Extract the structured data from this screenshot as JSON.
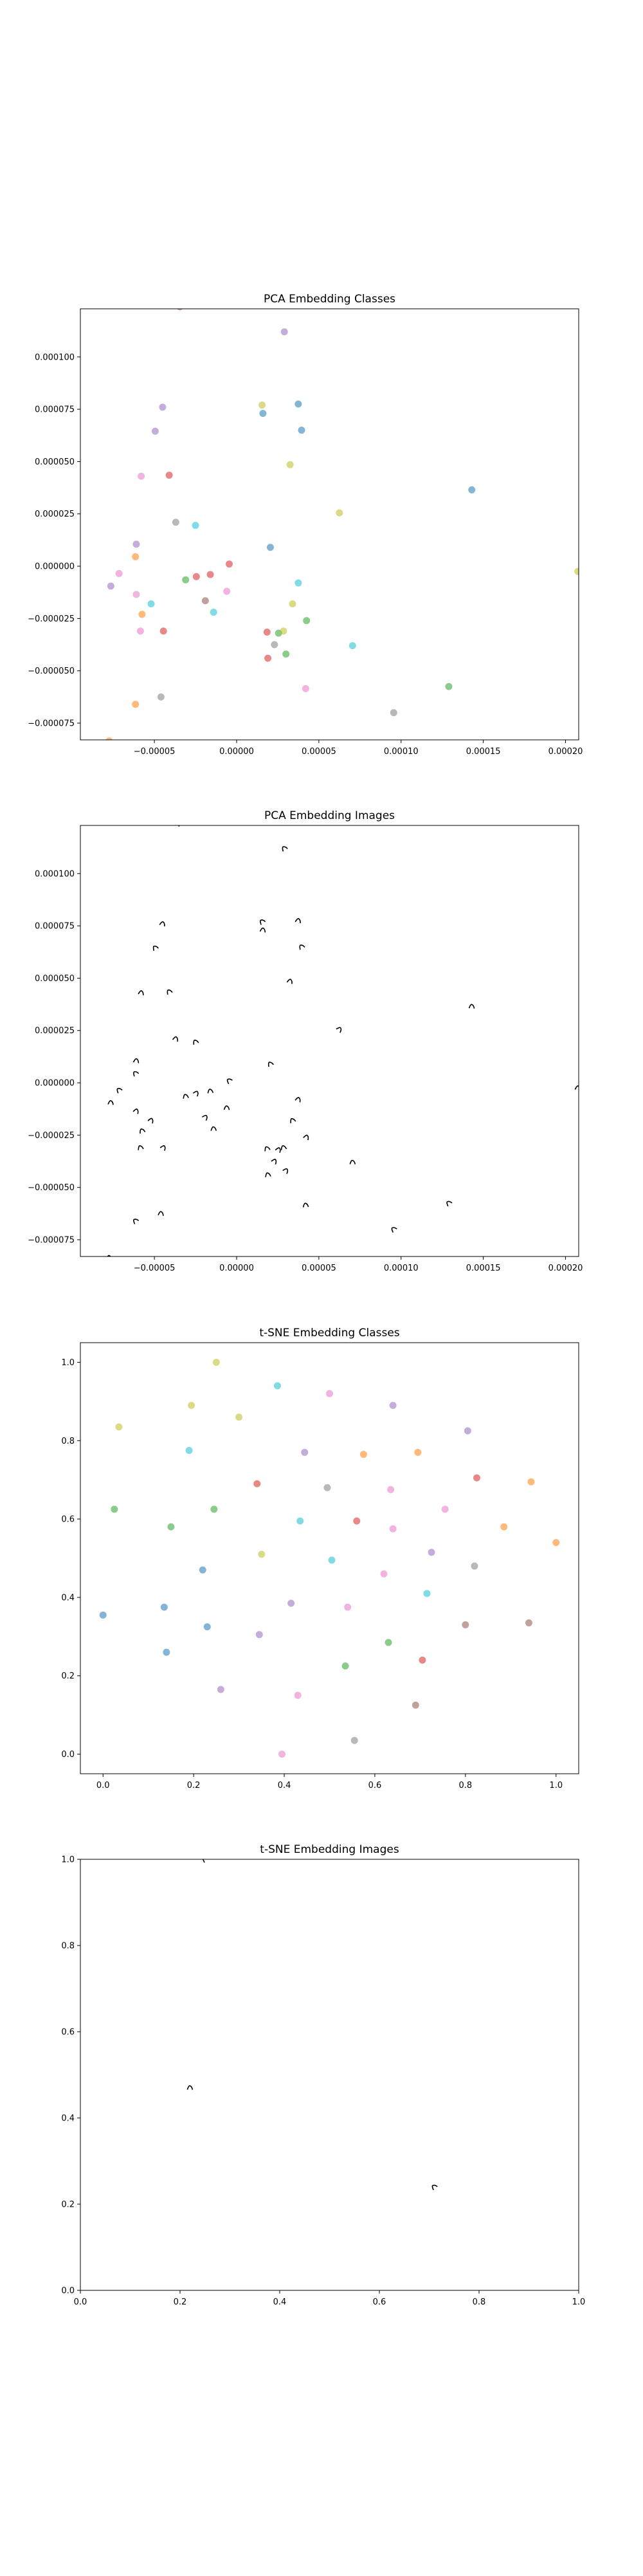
{
  "chart_data": [
    {
      "type": "scatter",
      "title": "PCA Embedding Classes",
      "xlabel": "",
      "ylabel": "",
      "xlim": [
        -9.5e-05,
        0.000208
      ],
      "ylim": [
        -8.3e-05,
        0.000123
      ],
      "x_ticks": [
        -5e-05,
        0.0,
        5e-05,
        0.0001,
        0.00015,
        0.0002
      ],
      "x_tick_labels": [
        "−0.00005",
        "0.00000",
        "0.00005",
        "0.00010",
        "0.00015",
        "0.00020"
      ],
      "y_ticks": [
        -7.5e-05,
        -5e-05,
        -2.5e-05,
        0.0,
        2.5e-05,
        5e-05,
        7.5e-05,
        0.0001
      ],
      "y_tick_labels": [
        "−0.000075",
        "−0.000050",
        "−0.000025",
        "0.000000",
        "0.000025",
        "0.000050",
        "0.000075",
        "0.000100"
      ],
      "grid": false,
      "points": [
        {
          "x": -9.85e-05,
          "y": -3.1e-05,
          "color": "#ff7f0e"
        },
        {
          "x": -7.75e-05,
          "y": -8.35e-05,
          "color": "#ff7f0e"
        },
        {
          "x": -3.45e-05,
          "y": 0.000124,
          "color": "#8c564b"
        },
        {
          "x": -7.65e-05,
          "y": -9.5e-06,
          "color": "#9467bd"
        },
        {
          "x": -7.15e-05,
          "y": -3.5e-06,
          "color": "#e377c2"
        },
        {
          "x": -6.1e-05,
          "y": 1.05e-05,
          "color": "#9467bd"
        },
        {
          "x": -6.15e-05,
          "y": 4.5e-06,
          "color": "#ff7f0e"
        },
        {
          "x": -5.8e-05,
          "y": 4.3e-05,
          "color": "#e377c2"
        },
        {
          "x": -4.95e-05,
          "y": 6.45e-05,
          "color": "#9467bd"
        },
        {
          "x": -4.5e-05,
          "y": 7.6e-05,
          "color": "#9467bd"
        },
        {
          "x": -4.1e-05,
          "y": 4.35e-05,
          "color": "#d62728"
        },
        {
          "x": -3.7e-05,
          "y": 2.1e-05,
          "color": "#7f7f7f"
        },
        {
          "x": -2.5e-05,
          "y": 1.95e-05,
          "color": "#17becf"
        },
        {
          "x": -6.1e-05,
          "y": -1.35e-05,
          "color": "#e377c2"
        },
        {
          "x": -5.75e-05,
          "y": -2.3e-05,
          "color": "#ff7f0e"
        },
        {
          "x": -5.2e-05,
          "y": -1.8e-05,
          "color": "#17becf"
        },
        {
          "x": -5.85e-05,
          "y": -3.1e-05,
          "color": "#e377c2"
        },
        {
          "x": -4.45e-05,
          "y": -3.1e-05,
          "color": "#d62728"
        },
        {
          "x": -3.1e-05,
          "y": -6.5e-06,
          "color": "#2ca02c"
        },
        {
          "x": -2.45e-05,
          "y": -5e-06,
          "color": "#d62728"
        },
        {
          "x": -1.6e-05,
          "y": -4e-06,
          "color": "#d62728"
        },
        {
          "x": -1.9e-05,
          "y": -1.65e-05,
          "color": "#8c564b"
        },
        {
          "x": -1.4e-05,
          "y": -2.2e-05,
          "color": "#17becf"
        },
        {
          "x": -4.5e-06,
          "y": 1e-06,
          "color": "#d62728"
        },
        {
          "x": -6e-06,
          "y": -1.2e-05,
          "color": "#e377c2"
        },
        {
          "x": -6.15e-05,
          "y": -6.6e-05,
          "color": "#ff7f0e"
        },
        {
          "x": -4.6e-05,
          "y": -6.25e-05,
          "color": "#7f7f7f"
        },
        {
          "x": 1.55e-05,
          "y": 7.7e-05,
          "color": "#bcbd22"
        },
        {
          "x": 1.6e-05,
          "y": 7.3e-05,
          "color": "#1f77b4"
        },
        {
          "x": 2.9e-05,
          "y": 0.000112,
          "color": "#9467bd"
        },
        {
          "x": 3.75e-05,
          "y": 7.75e-05,
          "color": "#1f77b4"
        },
        {
          "x": 3.95e-05,
          "y": 6.5e-05,
          "color": "#1f77b4"
        },
        {
          "x": 3.25e-05,
          "y": 4.85e-05,
          "color": "#bcbd22"
        },
        {
          "x": 2.05e-05,
          "y": 9e-06,
          "color": "#1f77b4"
        },
        {
          "x": 3.75e-05,
          "y": -8e-06,
          "color": "#17becf"
        },
        {
          "x": 3.4e-05,
          "y": -1.8e-05,
          "color": "#bcbd22"
        },
        {
          "x": 4.25e-05,
          "y": -2.6e-05,
          "color": "#2ca02c"
        },
        {
          "x": 1.85e-05,
          "y": -3.15e-05,
          "color": "#d62728"
        },
        {
          "x": 2.55e-05,
          "y": -3.2e-05,
          "color": "#2ca02c"
        },
        {
          "x": 2.85e-05,
          "y": -3.1e-05,
          "color": "#bcbd22"
        },
        {
          "x": 2.3e-05,
          "y": -3.75e-05,
          "color": "#7f7f7f"
        },
        {
          "x": 1.9e-05,
          "y": -4.4e-05,
          "color": "#d62728"
        },
        {
          "x": 3e-05,
          "y": -4.2e-05,
          "color": "#2ca02c"
        },
        {
          "x": 4.2e-05,
          "y": -5.85e-05,
          "color": "#e377c2"
        },
        {
          "x": 6.25e-05,
          "y": 2.55e-05,
          "color": "#bcbd22"
        },
        {
          "x": 7.05e-05,
          "y": -3.8e-05,
          "color": "#17becf"
        },
        {
          "x": 9.55e-05,
          "y": -7e-05,
          "color": "#7f7f7f"
        },
        {
          "x": 0.000143,
          "y": 3.65e-05,
          "color": "#1f77b4"
        },
        {
          "x": 0.000129,
          "y": -5.75e-05,
          "color": "#2ca02c"
        },
        {
          "x": 0.0002075,
          "y": -2.5e-06,
          "color": "#bcbd22"
        }
      ]
    },
    {
      "type": "scatter",
      "title": "PCA Embedding Images",
      "xlabel": "",
      "ylabel": "",
      "xlim": [
        -9.5e-05,
        0.000208
      ],
      "ylim": [
        -8.3e-05,
        0.000123
      ],
      "x_ticks": [
        -5e-05,
        0.0,
        5e-05,
        0.0001,
        0.00015,
        0.0002
      ],
      "x_tick_labels": [
        "−0.00005",
        "0.00000",
        "0.00005",
        "0.00010",
        "0.00015",
        "0.00020"
      ],
      "y_ticks": [
        -7.5e-05,
        -5e-05,
        -2.5e-05,
        0.0,
        2.5e-05,
        5e-05,
        7.5e-05,
        0.0001
      ],
      "y_tick_labels": [
        "−0.000075",
        "−0.000050",
        "−0.000025",
        "0.000000",
        "0.000025",
        "0.000050",
        "0.000075",
        "0.000100"
      ],
      "grid": false,
      "marker": "small black image thumbnail",
      "points": [
        {
          "x": -9.85e-05,
          "y": -3.1e-05
        },
        {
          "x": -7.75e-05,
          "y": -8.35e-05
        },
        {
          "x": -3.45e-05,
          "y": 0.000124
        },
        {
          "x": -7.65e-05,
          "y": -9.5e-06
        },
        {
          "x": -7.15e-05,
          "y": -3.5e-06
        },
        {
          "x": -6.1e-05,
          "y": 1.05e-05
        },
        {
          "x": -6.15e-05,
          "y": 4.5e-06
        },
        {
          "x": -5.8e-05,
          "y": 4.3e-05
        },
        {
          "x": -4.95e-05,
          "y": 6.45e-05
        },
        {
          "x": -4.5e-05,
          "y": 7.6e-05
        },
        {
          "x": -4.1e-05,
          "y": 4.35e-05
        },
        {
          "x": -3.7e-05,
          "y": 2.1e-05
        },
        {
          "x": -2.5e-05,
          "y": 1.95e-05
        },
        {
          "x": -6.1e-05,
          "y": -1.35e-05
        },
        {
          "x": -5.75e-05,
          "y": -2.3e-05
        },
        {
          "x": -5.2e-05,
          "y": -1.8e-05
        },
        {
          "x": -5.85e-05,
          "y": -3.1e-05
        },
        {
          "x": -4.45e-05,
          "y": -3.1e-05
        },
        {
          "x": -3.1e-05,
          "y": -6.5e-06
        },
        {
          "x": -2.45e-05,
          "y": -5e-06
        },
        {
          "x": -1.6e-05,
          "y": -4e-06
        },
        {
          "x": -1.9e-05,
          "y": -1.65e-05
        },
        {
          "x": -1.4e-05,
          "y": -2.2e-05
        },
        {
          "x": -4.5e-06,
          "y": 1e-06
        },
        {
          "x": -6e-06,
          "y": -1.2e-05
        },
        {
          "x": -6.15e-05,
          "y": -6.6e-05
        },
        {
          "x": -4.6e-05,
          "y": -6.25e-05
        },
        {
          "x": 1.55e-05,
          "y": 7.7e-05
        },
        {
          "x": 1.6e-05,
          "y": 7.3e-05
        },
        {
          "x": 2.9e-05,
          "y": 0.000112
        },
        {
          "x": 3.75e-05,
          "y": 7.75e-05
        },
        {
          "x": 3.95e-05,
          "y": 6.5e-05
        },
        {
          "x": 3.25e-05,
          "y": 4.85e-05
        },
        {
          "x": 2.05e-05,
          "y": 9e-06
        },
        {
          "x": 3.75e-05,
          "y": -8e-06
        },
        {
          "x": 3.4e-05,
          "y": -1.8e-05
        },
        {
          "x": 4.25e-05,
          "y": -2.6e-05
        },
        {
          "x": 1.85e-05,
          "y": -3.15e-05
        },
        {
          "x": 2.55e-05,
          "y": -3.2e-05
        },
        {
          "x": 2.85e-05,
          "y": -3.1e-05
        },
        {
          "x": 2.3e-05,
          "y": -3.75e-05
        },
        {
          "x": 1.9e-05,
          "y": -4.4e-05
        },
        {
          "x": 3e-05,
          "y": -4.2e-05
        },
        {
          "x": 4.2e-05,
          "y": -5.85e-05
        },
        {
          "x": 6.25e-05,
          "y": 2.55e-05
        },
        {
          "x": 7.05e-05,
          "y": -3.8e-05
        },
        {
          "x": 9.55e-05,
          "y": -7e-05
        },
        {
          "x": 0.000143,
          "y": 3.65e-05
        },
        {
          "x": 0.000129,
          "y": -5.75e-05
        },
        {
          "x": 0.0002075,
          "y": -2.5e-06
        }
      ]
    },
    {
      "type": "scatter",
      "title": "t-SNE Embedding Classes",
      "xlabel": "",
      "ylabel": "",
      "xlim": [
        -0.05,
        1.05
      ],
      "ylim": [
        -0.05,
        1.05
      ],
      "x_ticks": [
        0.0,
        0.2,
        0.4,
        0.6,
        0.8,
        1.0
      ],
      "x_tick_labels": [
        "0.0",
        "0.2",
        "0.4",
        "0.6",
        "0.8",
        "1.0"
      ],
      "y_ticks": [
        0.0,
        0.2,
        0.4,
        0.6,
        0.8,
        1.0
      ],
      "y_tick_labels": [
        "0.0",
        "0.2",
        "0.4",
        "0.6",
        "0.8",
        "1.0"
      ],
      "grid": false,
      "points": [
        {
          "x": 0.0,
          "y": 0.355,
          "color": "#1f77b4"
        },
        {
          "x": 0.025,
          "y": 0.625,
          "color": "#2ca02c"
        },
        {
          "x": 0.035,
          "y": 0.835,
          "color": "#bcbd22"
        },
        {
          "x": 0.135,
          "y": 0.375,
          "color": "#1f77b4"
        },
        {
          "x": 0.14,
          "y": 0.26,
          "color": "#1f77b4"
        },
        {
          "x": 0.15,
          "y": 0.58,
          "color": "#2ca02c"
        },
        {
          "x": 0.19,
          "y": 0.775,
          "color": "#17becf"
        },
        {
          "x": 0.195,
          "y": 0.89,
          "color": "#bcbd22"
        },
        {
          "x": 0.22,
          "y": 0.47,
          "color": "#1f77b4"
        },
        {
          "x": 0.23,
          "y": 0.325,
          "color": "#1f77b4"
        },
        {
          "x": 0.245,
          "y": 0.625,
          "color": "#2ca02c"
        },
        {
          "x": 0.25,
          "y": 1.0,
          "color": "#bcbd22"
        },
        {
          "x": 0.26,
          "y": 0.165,
          "color": "#9467bd"
        },
        {
          "x": 0.3,
          "y": 0.86,
          "color": "#bcbd22"
        },
        {
          "x": 0.34,
          "y": 0.69,
          "color": "#d62728"
        },
        {
          "x": 0.345,
          "y": 0.305,
          "color": "#9467bd"
        },
        {
          "x": 0.35,
          "y": 0.51,
          "color": "#bcbd22"
        },
        {
          "x": 0.385,
          "y": 0.94,
          "color": "#17becf"
        },
        {
          "x": 0.395,
          "y": 0.0,
          "color": "#e377c2"
        },
        {
          "x": 0.415,
          "y": 0.385,
          "color": "#9467bd"
        },
        {
          "x": 0.43,
          "y": 0.15,
          "color": "#e377c2"
        },
        {
          "x": 0.435,
          "y": 0.595,
          "color": "#17becf"
        },
        {
          "x": 0.445,
          "y": 0.77,
          "color": "#9467bd"
        },
        {
          "x": 0.495,
          "y": 0.68,
          "color": "#7f7f7f"
        },
        {
          "x": 0.505,
          "y": 0.495,
          "color": "#17becf"
        },
        {
          "x": 0.5,
          "y": 0.92,
          "color": "#e377c2"
        },
        {
          "x": 0.535,
          "y": 0.225,
          "color": "#2ca02c"
        },
        {
          "x": 0.54,
          "y": 0.375,
          "color": "#e377c2"
        },
        {
          "x": 0.555,
          "y": 0.035,
          "color": "#7f7f7f"
        },
        {
          "x": 0.56,
          "y": 0.595,
          "color": "#d62728"
        },
        {
          "x": 0.575,
          "y": 0.765,
          "color": "#ff7f0e"
        },
        {
          "x": 0.62,
          "y": 0.46,
          "color": "#e377c2"
        },
        {
          "x": 0.63,
          "y": 0.285,
          "color": "#2ca02c"
        },
        {
          "x": 0.635,
          "y": 0.675,
          "color": "#e377c2"
        },
        {
          "x": 0.64,
          "y": 0.575,
          "color": "#e377c2"
        },
        {
          "x": 0.64,
          "y": 0.89,
          "color": "#9467bd"
        },
        {
          "x": 0.69,
          "y": 0.125,
          "color": "#8c564b"
        },
        {
          "x": 0.695,
          "y": 0.77,
          "color": "#ff7f0e"
        },
        {
          "x": 0.705,
          "y": 0.24,
          "color": "#d62728"
        },
        {
          "x": 0.715,
          "y": 0.41,
          "color": "#17becf"
        },
        {
          "x": 0.725,
          "y": 0.515,
          "color": "#9467bd"
        },
        {
          "x": 0.755,
          "y": 0.625,
          "color": "#e377c2"
        },
        {
          "x": 0.8,
          "y": 0.33,
          "color": "#8c564b"
        },
        {
          "x": 0.805,
          "y": 0.825,
          "color": "#9467bd"
        },
        {
          "x": 0.82,
          "y": 0.48,
          "color": "#7f7f7f"
        },
        {
          "x": 0.825,
          "y": 0.705,
          "color": "#d62728"
        },
        {
          "x": 0.885,
          "y": 0.58,
          "color": "#ff7f0e"
        },
        {
          "x": 0.94,
          "y": 0.335,
          "color": "#8c564b"
        },
        {
          "x": 0.945,
          "y": 0.695,
          "color": "#ff7f0e"
        },
        {
          "x": 1.0,
          "y": 0.54,
          "color": "#ff7f0e"
        }
      ]
    },
    {
      "type": "scatter",
      "title": "t-SNE Embedding Images",
      "xlabel": "",
      "ylabel": "",
      "xlim": [
        0.0,
        1.0
      ],
      "ylim": [
        0.0,
        1.0
      ],
      "x_ticks": [
        0.0,
        0.2,
        0.4,
        0.6,
        0.8,
        1.0
      ],
      "x_tick_labels": [
        "0.0",
        "0.2",
        "0.4",
        "0.6",
        "0.8",
        "1.0"
      ],
      "y_ticks": [
        0.0,
        0.2,
        0.4,
        0.6,
        0.8,
        1.0
      ],
      "y_tick_labels": [
        "0.0",
        "0.2",
        "0.4",
        "0.6",
        "0.8",
        "1.0"
      ],
      "grid": false,
      "marker": "small black image thumbnail",
      "points": [
        {
          "x": 0.25,
          "y": 1.0
        },
        {
          "x": 0.22,
          "y": 0.47
        },
        {
          "x": 0.71,
          "y": 0.24
        }
      ]
    }
  ]
}
